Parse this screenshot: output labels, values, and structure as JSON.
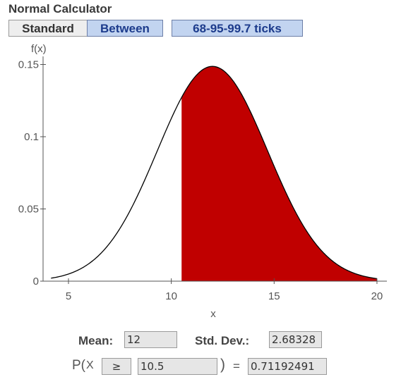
{
  "app": {
    "title": "Normal Calculator"
  },
  "tabs": [
    {
      "label": "Standard",
      "state": "inactive"
    },
    {
      "label": "Between",
      "state": "active"
    },
    {
      "label": "68-95-99.7 ticks",
      "state": "active"
    }
  ],
  "chart_data": {
    "type": "area",
    "ylabel": "f(x)",
    "xlabel": "x",
    "xlim": [
      4,
      20.3
    ],
    "ylim": [
      0,
      0.15
    ],
    "x_ticks": [
      5,
      10,
      15,
      20
    ],
    "y_ticks": [
      {
        "value": 0,
        "label": "0"
      },
      {
        "value": 0.05,
        "label": "0.05"
      },
      {
        "value": 0.1,
        "label": "0.1"
      },
      {
        "value": 0.15,
        "label": "0.15"
      }
    ],
    "curve": {
      "distribution": "normal",
      "mean": 12,
      "sd": 2.68328
    },
    "shaded": {
      "from": 10.5,
      "to": 20,
      "color": "#c00000"
    },
    "curve_color": "#000000"
  },
  "params": {
    "mean_label": "Mean:",
    "mean_value": "12",
    "sd_label": "Std. Dev.:",
    "sd_value": "2.68328"
  },
  "prob": {
    "p_label": "P(",
    "x_label": "X",
    "operator": "≥",
    "value": "10.5",
    "close_paren": ")",
    "equals": "=",
    "result": "0.71192491"
  }
}
